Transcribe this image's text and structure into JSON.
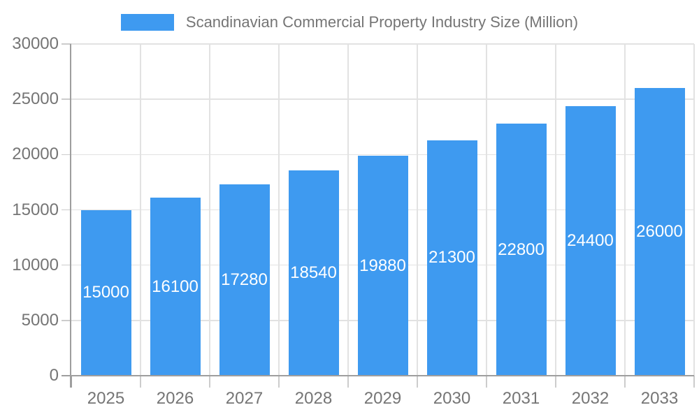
{
  "chart_data": {
    "type": "bar",
    "title": "Scandinavian Commercial Property Industry Size (Million)",
    "categories": [
      "2025",
      "2026",
      "2027",
      "2028",
      "2029",
      "2030",
      "2031",
      "2032",
      "2033"
    ],
    "values": [
      15000,
      16100,
      17280,
      18540,
      19880,
      21300,
      22800,
      24400,
      26000
    ],
    "value_labels": [
      "15000",
      "16100",
      "17280",
      "18540",
      "19880",
      "21300",
      "22800",
      "24400",
      "26000"
    ],
    "xlabel": "",
    "ylabel": "",
    "ylim": [
      0,
      30000
    ],
    "yticks": [
      0,
      5000,
      10000,
      15000,
      20000,
      25000,
      30000
    ],
    "ytick_labels": [
      "0",
      "5000",
      "10000",
      "15000",
      "20000",
      "25000",
      "30000"
    ],
    "grid": true,
    "legend_position": "top-center",
    "colors": {
      "bar": "#3E9AF0",
      "value_label": "#FFFFFF",
      "axis_text": "#757575",
      "grid_line": "#E2E2E2",
      "tick_line": "#CCCCCC",
      "axis_line": "#9E9E9E",
      "background": "#FFFFFF"
    }
  }
}
